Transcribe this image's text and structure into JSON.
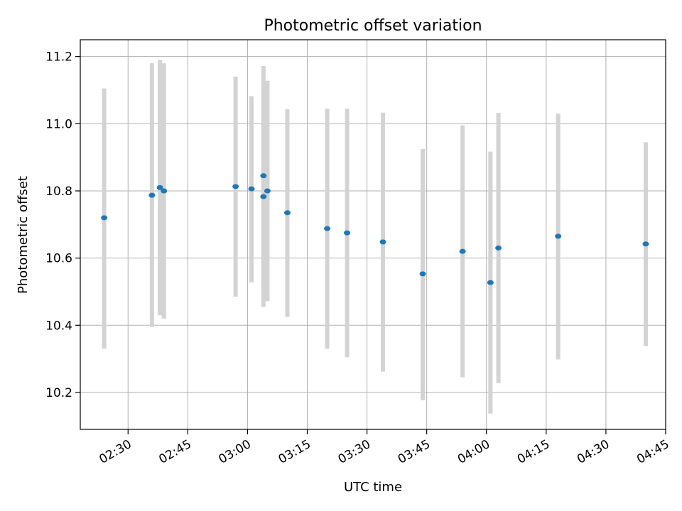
{
  "chart_data": {
    "type": "scatter",
    "title": "Photometric offset variation",
    "xlabel": "UTC time",
    "ylabel": "Photometric offset",
    "x_axis_type": "time",
    "xlim": [
      "02:18",
      "04:45"
    ],
    "ylim": [
      10.09,
      11.25
    ],
    "grid": true,
    "x_ticks": [
      "02:30",
      "02:45",
      "03:00",
      "03:15",
      "03:30",
      "03:45",
      "04:00",
      "04:15",
      "04:30",
      "04:45"
    ],
    "y_ticks": [
      "10.2",
      "10.4",
      "10.6",
      "10.8",
      "11.0",
      "11.2"
    ],
    "point_color": "#1f77b4",
    "errorbar_color": "#d3d3d3",
    "points": [
      {
        "time": "02:24",
        "y": 10.72,
        "err_low": 10.33,
        "err_high": 11.105
      },
      {
        "time": "02:36",
        "y": 10.787,
        "err_low": 10.395,
        "err_high": 11.18
      },
      {
        "time": "02:38",
        "y": 10.81,
        "err_low": 10.43,
        "err_high": 11.19
      },
      {
        "time": "02:39",
        "y": 10.8,
        "err_low": 10.42,
        "err_high": 11.18
      },
      {
        "time": "02:57",
        "y": 10.813,
        "err_low": 10.485,
        "err_high": 11.14
      },
      {
        "time": "03:01",
        "y": 10.806,
        "err_low": 10.528,
        "err_high": 11.082
      },
      {
        "time": "03:04",
        "y": 10.845,
        "err_low": 10.515,
        "err_high": 11.172
      },
      {
        "time": "03:04",
        "y": 10.783,
        "err_low": 10.455,
        "err_high": 11.11
      },
      {
        "time": "03:05",
        "y": 10.8,
        "err_low": 10.472,
        "err_high": 11.128
      },
      {
        "time": "03:10",
        "y": 10.735,
        "err_low": 10.425,
        "err_high": 11.043
      },
      {
        "time": "03:20",
        "y": 10.688,
        "err_low": 10.33,
        "err_high": 11.045
      },
      {
        "time": "03:25",
        "y": 10.675,
        "err_low": 10.305,
        "err_high": 11.045
      },
      {
        "time": "03:34",
        "y": 10.648,
        "err_low": 10.262,
        "err_high": 11.033
      },
      {
        "time": "03:44",
        "y": 10.553,
        "err_low": 10.177,
        "err_high": 10.925
      },
      {
        "time": "03:54",
        "y": 10.62,
        "err_low": 10.245,
        "err_high": 10.995
      },
      {
        "time": "04:01",
        "y": 10.527,
        "err_low": 10.137,
        "err_high": 10.917
      },
      {
        "time": "04:03",
        "y": 10.63,
        "err_low": 10.228,
        "err_high": 11.032
      },
      {
        "time": "04:18",
        "y": 10.665,
        "err_low": 10.298,
        "err_high": 11.03
      },
      {
        "time": "04:40",
        "y": 10.642,
        "err_low": 10.338,
        "err_high": 10.945
      }
    ]
  }
}
